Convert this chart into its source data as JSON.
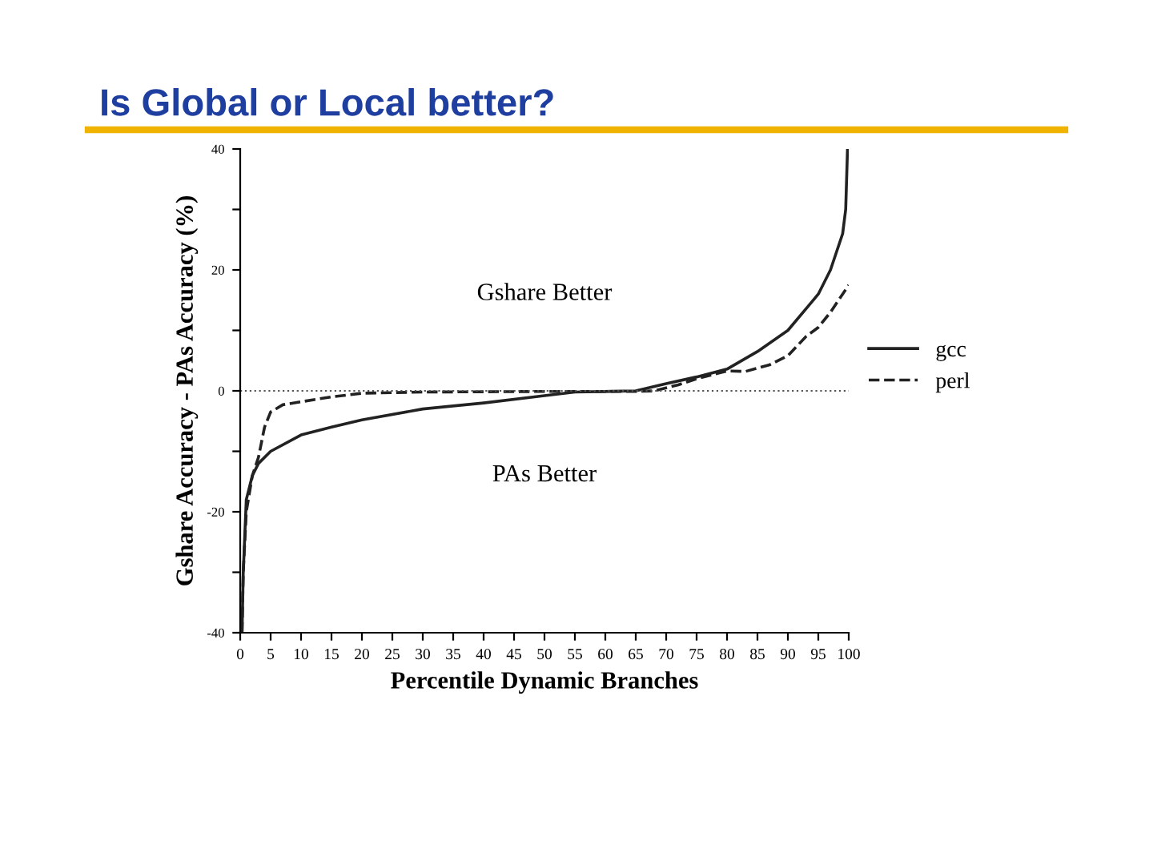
{
  "chart_data": {
    "type": "line",
    "title": "Is Global or Local better?",
    "xlabel": "Percentile Dynamic Branches",
    "ylabel": "Gshare Accuracy - PAs Accuracy (%)",
    "annotations": [
      "Gshare Better",
      "PAs Better"
    ],
    "xlim": [
      0,
      100
    ],
    "xticks": [
      0,
      5,
      10,
      15,
      20,
      25,
      30,
      35,
      40,
      45,
      50,
      55,
      60,
      65,
      70,
      75,
      80,
      85,
      90,
      95,
      100
    ],
    "ylim": [
      -40,
      40
    ],
    "yticks": [
      -40,
      {
        "value": -30,
        "label": null
      },
      -20,
      {
        "value": -10,
        "label": null
      },
      0,
      {
        "value": 10,
        "label": null
      },
      20,
      {
        "value": 30,
        "label": null
      },
      40
    ],
    "grid": false,
    "legend": "right",
    "marker": "none",
    "ref_lines": [
      {
        "axis": "y",
        "value": 0,
        "line_style": "dotted",
        "color": "#555555"
      }
    ],
    "series": [
      {
        "name": "gcc",
        "color": "#222222",
        "line_style": "solid",
        "x": [
          0.3,
          0.5,
          1,
          2,
          3,
          5,
          10,
          15,
          20,
          30,
          40,
          50,
          55,
          65,
          70,
          75,
          80,
          85,
          90,
          95,
          97,
          99,
          99.5,
          99.8
        ],
        "values": [
          -40,
          -30,
          -18,
          -14,
          -12,
          -10,
          -7.3,
          -6,
          -4.8,
          -3,
          -2,
          -0.8,
          -0.2,
          0,
          1.2,
          2.3,
          3.6,
          6.5,
          10,
          16,
          20,
          26,
          30,
          40
        ]
      },
      {
        "name": "perl",
        "color": "#222222",
        "line_style": "dashed",
        "x": [
          0.3,
          0.5,
          1,
          2,
          3,
          4,
          5,
          7,
          10,
          15,
          20,
          30,
          50,
          65,
          68,
          72,
          75,
          80,
          83,
          87,
          90,
          93,
          95,
          97,
          100
        ],
        "values": [
          -40,
          -30,
          -20,
          -14,
          -11,
          -6,
          -3.5,
          -2.3,
          -1.8,
          -1,
          -0.4,
          -0.2,
          -0.1,
          -0.1,
          0,
          1,
          2,
          3.3,
          3.2,
          4.3,
          5.8,
          9,
          10.5,
          13,
          17.5
        ]
      }
    ]
  }
}
